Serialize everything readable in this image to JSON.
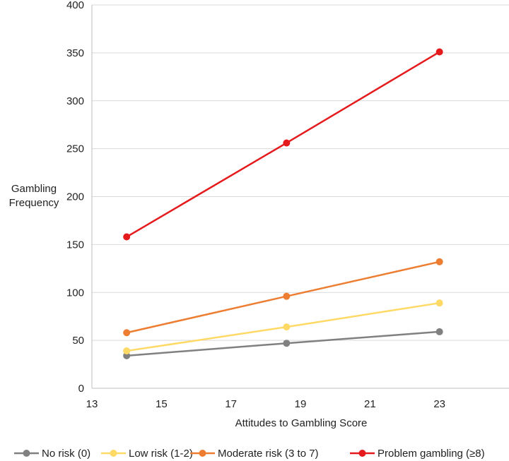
{
  "chart_data": {
    "type": "line",
    "title": "",
    "xlabel": "Attitudes to Gambling Score",
    "ylabel_lines": [
      "Gambling",
      "Frequency"
    ],
    "xlim": [
      13,
      25
    ],
    "ylim": [
      0,
      400
    ],
    "xticks": [
      13,
      15,
      17,
      19,
      21,
      23
    ],
    "yticks": [
      0,
      50,
      100,
      150,
      200,
      250,
      300,
      350,
      400
    ],
    "grid": "horizontal",
    "legend_position": "bottom",
    "series": [
      {
        "name": "No risk (0)",
        "color": "#808080",
        "x": [
          14,
          18.6,
          23
        ],
        "y": [
          34,
          47,
          59
        ]
      },
      {
        "name": "Low risk (1-2)",
        "color": "#FFD966",
        "x": [
          14,
          18.6,
          23
        ],
        "y": [
          39,
          64,
          89
        ]
      },
      {
        "name": "Moderate risk (3 to 7)",
        "color": "#ED7D31",
        "x": [
          14,
          18.6,
          23
        ],
        "y": [
          58,
          96,
          132
        ]
      },
      {
        "name": "Problem gambling (≥8)",
        "color": "#E41A1C",
        "x": [
          14,
          18.6,
          23
        ],
        "y": [
          158,
          256,
          351
        ]
      }
    ]
  }
}
